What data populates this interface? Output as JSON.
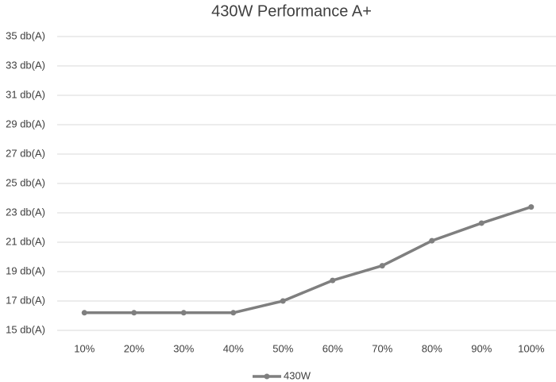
{
  "chart_data": {
    "type": "line",
    "title": "430W Performance A+",
    "categories": [
      "10%",
      "20%",
      "30%",
      "40%",
      "50%",
      "60%",
      "70%",
      "80%",
      "90%",
      "100%"
    ],
    "series": [
      {
        "name": "430W",
        "color": "#7f7f7f",
        "values": [
          16.2,
          16.2,
          16.2,
          16.2,
          17.0,
          18.4,
          19.4,
          21.1,
          22.3,
          23.4
        ]
      }
    ],
    "ylim": [
      15,
      35
    ],
    "yticks": [
      {
        "value": 15,
        "label": "15 db(A)"
      },
      {
        "value": 17,
        "label": "17 db(A)"
      },
      {
        "value": 19,
        "label": "19 db(A)"
      },
      {
        "value": 21,
        "label": "21 db(A)"
      },
      {
        "value": 23,
        "label": "23 db(A)"
      },
      {
        "value": 25,
        "label": "25 db(A)"
      },
      {
        "value": 27,
        "label": "27 db(A)"
      },
      {
        "value": 29,
        "label": "29 db(A)"
      },
      {
        "value": 31,
        "label": "31 db(A)"
      },
      {
        "value": 33,
        "label": "33 db(A)"
      },
      {
        "value": 35,
        "label": "35 db(A)"
      }
    ],
    "grid": true,
    "legend": "bottom"
  }
}
